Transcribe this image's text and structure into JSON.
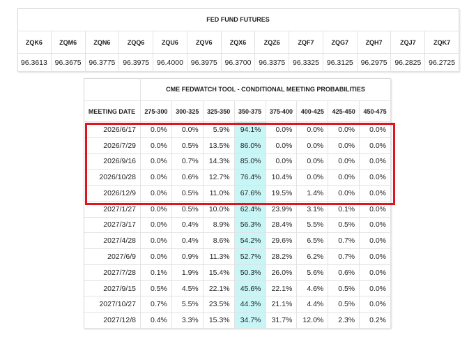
{
  "fed_fund_futures": {
    "title": "FED FUND FUTURES",
    "headers": [
      "ZQK6",
      "ZQM6",
      "ZQN6",
      "ZQQ6",
      "ZQU6",
      "ZQV6",
      "ZQX6",
      "ZQZ6",
      "ZQF7",
      "ZQG7",
      "ZQH7",
      "ZQJ7",
      "ZQK7"
    ],
    "values": [
      "96.3613",
      "96.3675",
      "96.3775",
      "96.3975",
      "96.4000",
      "96.3975",
      "96.3700",
      "96.3375",
      "96.3325",
      "96.3125",
      "96.2975",
      "96.2825",
      "96.2725"
    ]
  },
  "fedwatch": {
    "title": "CME FEDWATCH TOOL - CONDITIONAL MEETING PROBABILITIES",
    "headers": [
      "MEETING DATE",
      "275-300",
      "300-325",
      "325-350",
      "350-375",
      "375-400",
      "400-425",
      "425-450",
      "450-475"
    ],
    "rows": [
      [
        "2026/6/17",
        "0.0%",
        "0.0%",
        "5.9%",
        "94.1%",
        "0.0%",
        "0.0%",
        "0.0%",
        "0.0%"
      ],
      [
        "2026/7/29",
        "0.0%",
        "0.5%",
        "13.5%",
        "86.0%",
        "0.0%",
        "0.0%",
        "0.0%",
        "0.0%"
      ],
      [
        "2026/9/16",
        "0.0%",
        "0.7%",
        "14.3%",
        "85.0%",
        "0.0%",
        "0.0%",
        "0.0%",
        "0.0%"
      ],
      [
        "2026/10/28",
        "0.0%",
        "0.6%",
        "12.7%",
        "76.4%",
        "10.4%",
        "0.0%",
        "0.0%",
        "0.0%"
      ],
      [
        "2026/12/9",
        "0.0%",
        "0.5%",
        "11.0%",
        "67.6%",
        "19.5%",
        "1.4%",
        "0.0%",
        "0.0%"
      ],
      [
        "2027/1/27",
        "0.0%",
        "0.5%",
        "10.0%",
        "62.4%",
        "23.9%",
        "3.1%",
        "0.1%",
        "0.0%"
      ],
      [
        "2027/3/17",
        "0.0%",
        "0.4%",
        "8.9%",
        "56.3%",
        "28.4%",
        "5.5%",
        "0.5%",
        "0.0%"
      ],
      [
        "2027/4/28",
        "0.0%",
        "0.4%",
        "8.6%",
        "54.2%",
        "29.6%",
        "6.5%",
        "0.7%",
        "0.0%"
      ],
      [
        "2027/6/9",
        "0.0%",
        "0.9%",
        "11.3%",
        "52.7%",
        "28.2%",
        "6.2%",
        "0.7%",
        "0.0%"
      ],
      [
        "2027/7/28",
        "0.1%",
        "1.9%",
        "15.4%",
        "50.3%",
        "26.0%",
        "5.6%",
        "0.6%",
        "0.0%"
      ],
      [
        "2027/9/15",
        "0.5%",
        "4.5%",
        "22.1%",
        "45.6%",
        "22.1%",
        "4.6%",
        "0.5%",
        "0.0%"
      ],
      [
        "2027/10/27",
        "0.7%",
        "5.5%",
        "23.5%",
        "44.3%",
        "21.1%",
        "4.4%",
        "0.5%",
        "0.0%"
      ],
      [
        "2027/12/8",
        "0.4%",
        "3.3%",
        "15.3%",
        "34.7%",
        "31.7%",
        "12.0%",
        "2.3%",
        "0.2%"
      ]
    ]
  }
}
